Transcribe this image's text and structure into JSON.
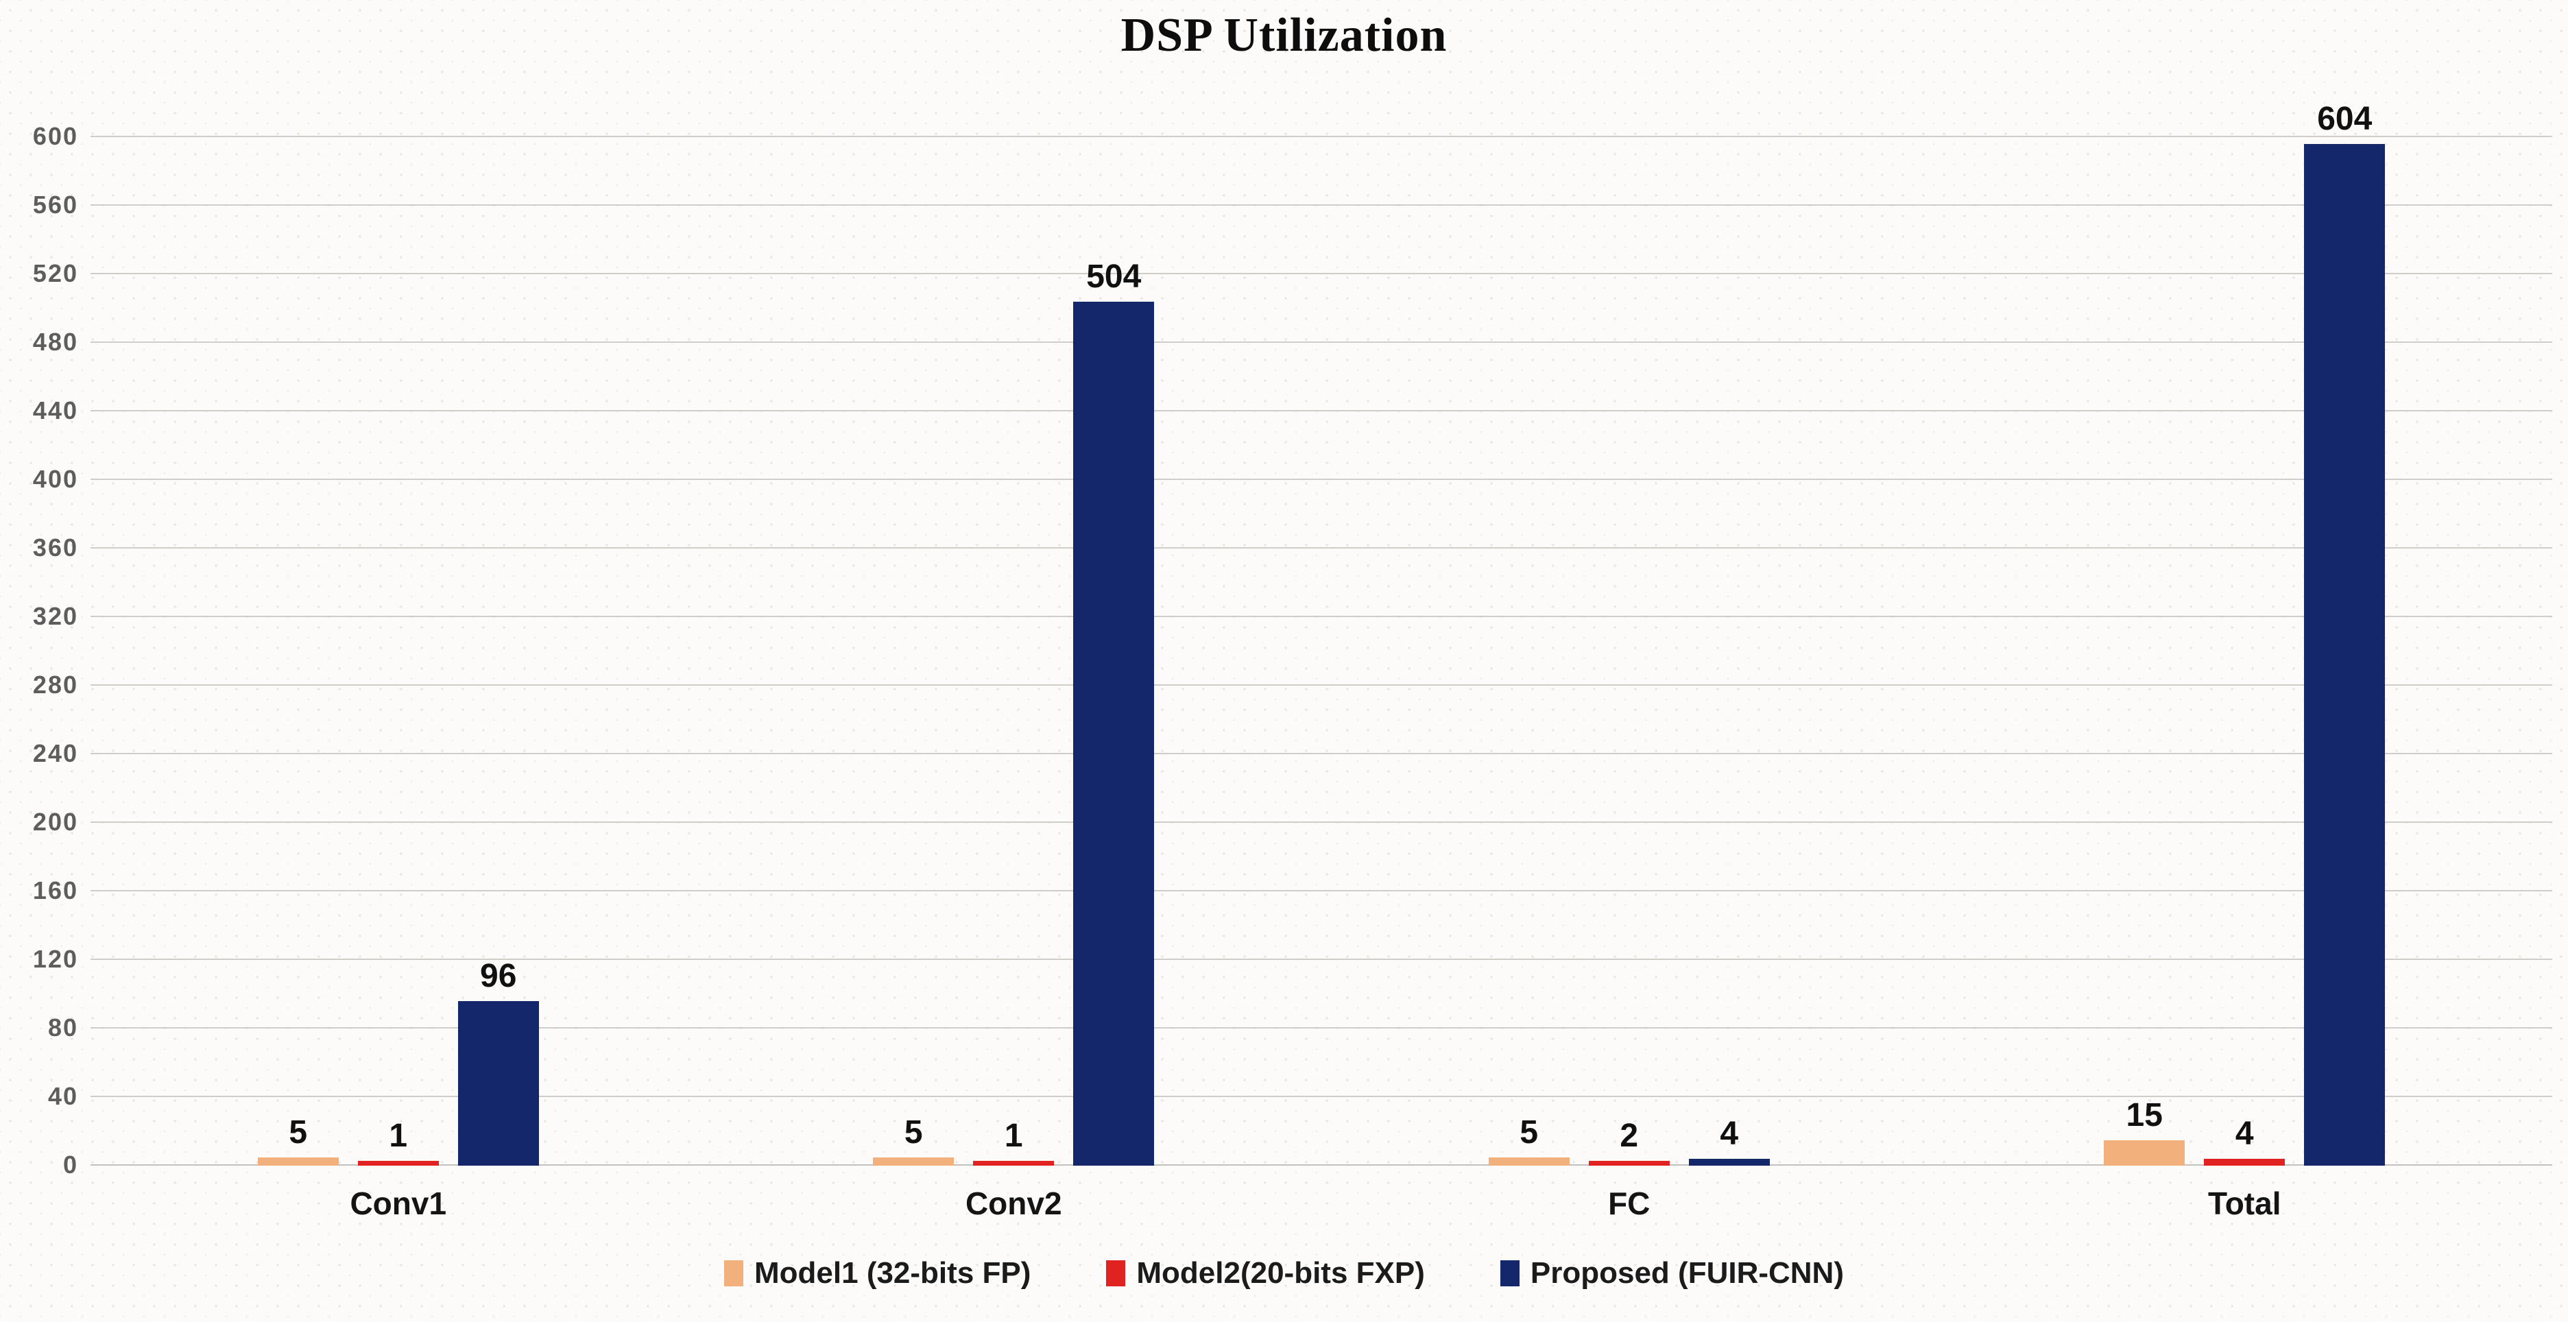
{
  "colors": {
    "background": "#fcfbf9",
    "gridline": "#cfcdc8",
    "ytick_text": "#5d5d5d",
    "label_text": "#101010",
    "series_tan": "#f2b07c",
    "series_red": "#e02320",
    "series_navy": "#14276a"
  },
  "chart_data": {
    "type": "bar",
    "title": "DSP Utilization",
    "xlabel": "",
    "ylabel": "",
    "categories": [
      "Conv1",
      "Conv2",
      "FC",
      "Total"
    ],
    "series": [
      {
        "name": "Model1 (32-bits FP)",
        "color": "#f2b07c",
        "values": [
          5,
          5,
          5,
          15
        ]
      },
      {
        "name": "Model2(20-bits FXP)",
        "color": "#e02320",
        "values": [
          1,
          1,
          2,
          4
        ]
      },
      {
        "name": "Proposed (FUIR-CNN)",
        "color": "#14276a",
        "values": [
          96,
          504,
          4,
          604
        ]
      }
    ],
    "yticks": [
      0,
      40,
      80,
      120,
      160,
      200,
      240,
      280,
      320,
      360,
      400,
      440,
      480,
      520,
      560,
      600
    ],
    "ylim": [
      0,
      620
    ],
    "grid": true,
    "legend_position": "bottom"
  }
}
